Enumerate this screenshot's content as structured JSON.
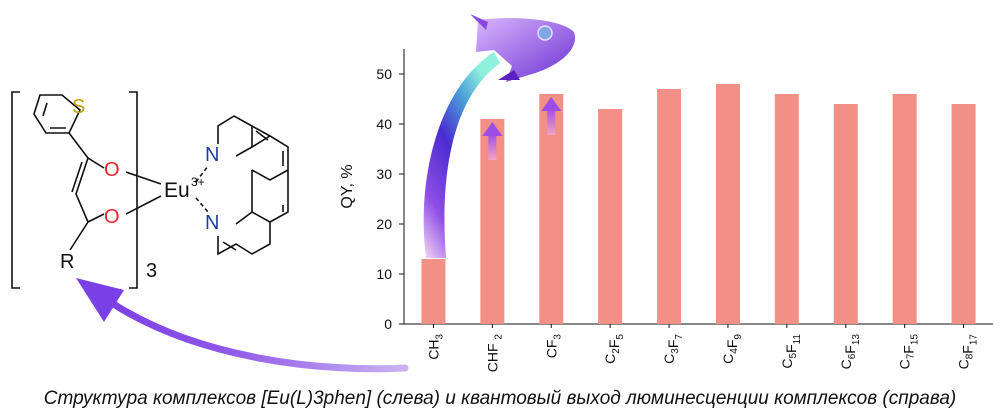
{
  "molecule": {
    "atoms": {
      "sulfur": "S",
      "oxygen_top": "O",
      "oxygen_bottom": "O",
      "metal": "Eu",
      "metal_charge": "3+",
      "nitrogen_top": "N",
      "nitrogen_bottom": "N",
      "substituent": "R"
    },
    "count_subscript": "3"
  },
  "colors": {
    "bar": "#f28f86",
    "arrow": "#9b4de6",
    "oxygen": "#e8232a",
    "nitrogen": "#1f3fa6",
    "sulfur": "#c7a200",
    "text": "#111111"
  },
  "icons": [
    "rocket-icon",
    "curved-arrow-icon",
    "up-arrow-icon"
  ],
  "chart_data": {
    "type": "bar",
    "ylabel": "QY, %",
    "ylim": [
      0,
      55
    ],
    "yticks": [
      0,
      10,
      20,
      30,
      40,
      50
    ],
    "grid": false,
    "categories": [
      {
        "main": "CH",
        "sub": "3"
      },
      {
        "main": "CHF ",
        "sub": "2"
      },
      {
        "main": "CF",
        "sub": "3"
      },
      {
        "parts": [
          [
            "C",
            "2"
          ],
          [
            "F",
            "5"
          ]
        ]
      },
      {
        "parts": [
          [
            "C",
            "3"
          ],
          [
            "F",
            "7"
          ]
        ]
      },
      {
        "parts": [
          [
            "C",
            "4"
          ],
          [
            "F",
            "9"
          ]
        ]
      },
      {
        "parts": [
          [
            "C",
            "5"
          ],
          [
            "F",
            "11"
          ]
        ]
      },
      {
        "parts": [
          [
            "C",
            "6"
          ],
          [
            "F",
            "13"
          ]
        ]
      },
      {
        "parts": [
          [
            "C",
            "7"
          ],
          [
            "F",
            "15"
          ]
        ]
      },
      {
        "parts": [
          [
            "C",
            "8"
          ],
          [
            "F",
            "17"
          ]
        ]
      }
    ],
    "values": [
      13,
      41,
      46,
      43,
      47,
      48,
      46,
      44,
      46,
      44
    ]
  },
  "caption": "Структура комплексов [Eu(L)3phen] (слева) и квантовый выход люминесценции комплексов (справа)"
}
